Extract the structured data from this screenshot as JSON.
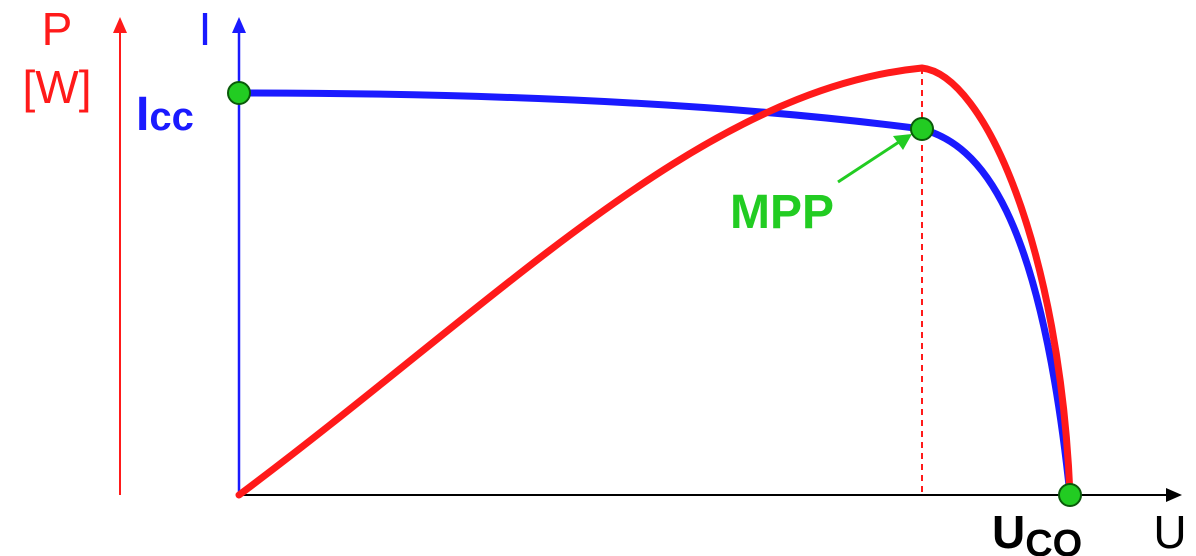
{
  "colors": {
    "power": "#ff1a1a",
    "current": "#1a1aff",
    "point": "#22cc22",
    "point_outline": "#0a5a0a",
    "axis": "#000000"
  },
  "labels": {
    "power_axis": "P",
    "power_unit": "[W]",
    "current_axis": "I",
    "icc_main": "I",
    "icc_sub": "cc",
    "mpp": "MPP",
    "uco_main": "U",
    "uco_sub": "CO",
    "voltage_axis": "U"
  },
  "chart_data": {
    "type": "line",
    "title": "",
    "xlabel": "U",
    "ylabel": "I",
    "series": [
      {
        "name": "I",
        "color": "#1a1aff"
      },
      {
        "name": "P",
        "color": "#ff1a1a"
      }
    ],
    "points": [
      "Icc",
      "MPP",
      "Uco"
    ],
    "grid": false
  }
}
